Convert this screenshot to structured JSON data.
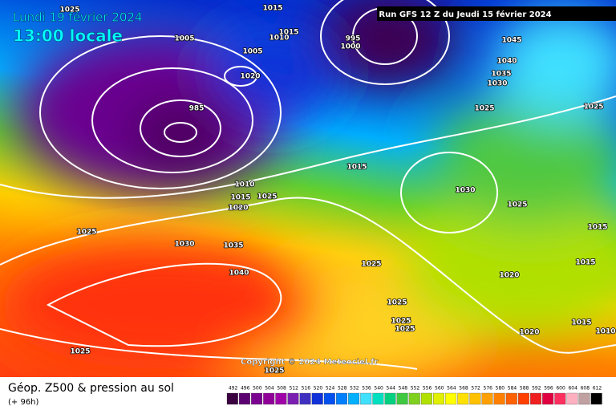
{
  "header": {
    "date": "Lundi 19 février 2024",
    "time": "13:00 locale",
    "run": "Run GFS 12 Z du Jeudi 15 février 2024"
  },
  "copyright": "Copyright © 2024 Meteociel.fr",
  "footer": {
    "title": "Géop. Z500 & pression au sol",
    "lead": "(+ 96h)"
  },
  "legend": {
    "values": [
      492,
      496,
      500,
      504,
      508,
      512,
      516,
      520,
      524,
      528,
      532,
      536,
      540,
      544,
      548,
      552,
      556,
      560,
      564,
      568,
      572,
      576,
      580,
      584,
      588,
      592,
      596,
      600,
      604,
      608,
      612
    ],
    "colors": [
      "#3a0040",
      "#5a0070",
      "#7a0090",
      "#900098",
      "#a000a8",
      "#7a1fb0",
      "#4030c0",
      "#1030d8",
      "#0050f0",
      "#0080ff",
      "#00b0ff",
      "#40e0ff",
      "#00e0c0",
      "#00d080",
      "#40c840",
      "#80d020",
      "#b0e000",
      "#e0f000",
      "#ffff00",
      "#ffe000",
      "#ffc000",
      "#ffa000",
      "#ff8000",
      "#ff6000",
      "#ff4000",
      "#f02020",
      "#e00040",
      "#ff3060",
      "#ffb0c0",
      "#c0a0a0",
      "#000000"
    ]
  },
  "isobars": [
    "1025",
    "1015",
    "1005",
    "1015",
    "1010",
    "1005",
    "1020",
    "1045",
    "1040",
    "1035",
    "1030",
    "1025",
    "1025",
    "995",
    "1000",
    "985",
    "1015",
    "1030",
    "1025",
    "1010",
    "1015",
    "1025",
    "1020",
    "1025",
    "1030",
    "1035",
    "1040",
    "1025",
    "1015",
    "1015",
    "1020",
    "1025",
    "1025",
    "1025",
    "1015",
    "1010",
    "1020",
    "1025",
    "1025"
  ]
}
